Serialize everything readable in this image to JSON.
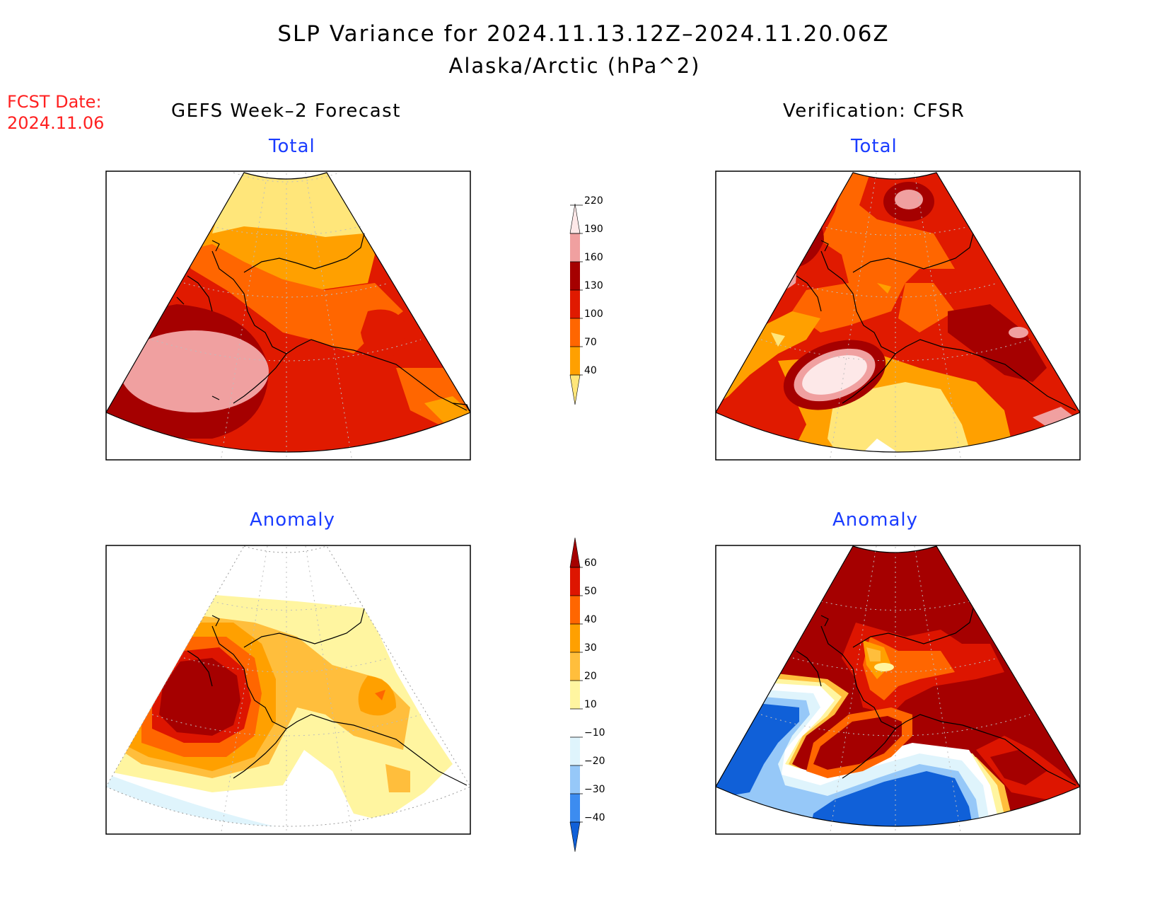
{
  "title": "SLP Variance for 2024.11.13.12Z–2024.11.20.06Z",
  "subtitle": "Alaska/Arctic (hPa^2)",
  "fcst_label": "FCST Date:",
  "fcst_date": "2024.11.06",
  "columns": {
    "left": "GEFS Week–2 Forecast",
    "right": "Verification: CFSR"
  },
  "panels": {
    "total_left": "Total",
    "total_right": "Total",
    "anom_left": "Anomaly",
    "anom_right": "Anomaly"
  },
  "colorbars": {
    "total": {
      "levels": [
        "40",
        "70",
        "100",
        "130",
        "160",
        "190",
        "220"
      ],
      "colors": [
        "#ffe67a",
        "#ffa000",
        "#ff6600",
        "#e01a00",
        "#a50000",
        "#f0a0a0",
        "#fde8e8"
      ]
    },
    "anomaly": {
      "levels": [
        "−40",
        "−30",
        "−20",
        "−10",
        "10",
        "20",
        "30",
        "40",
        "50",
        "60"
      ],
      "colors": [
        "#1060d8",
        "#3c8cf0",
        "#96c8f8",
        "#dff4fc",
        "#ffffff",
        "#fff5a0",
        "#ffbe3c",
        "#ffa000",
        "#ff6600",
        "#dd1500",
        "#a50000"
      ]
    }
  }
}
